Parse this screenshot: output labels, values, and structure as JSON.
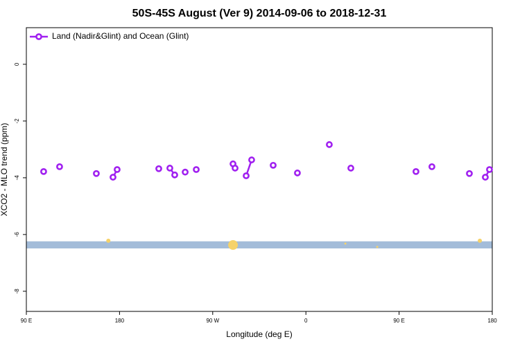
{
  "chart_data": {
    "type": "line",
    "title": "50S-45S August (Ver 9)   2014-09-06 to 2018-12-31",
    "x_label": "Longitude (deg E)",
    "y_label": "XCO2 - MLO trend (ppm)",
    "xlim": [
      90,
      540
    ],
    "xticks": [
      {
        "value": 90,
        "label": "90 E"
      },
      {
        "value": 180,
        "label": "180"
      },
      {
        "value": 270,
        "label": "90 W"
      },
      {
        "value": 360,
        "label": "0"
      },
      {
        "value": 450,
        "label": "90 E"
      },
      {
        "value": 540,
        "label": "180"
      }
    ],
    "ylim": [
      -8.71,
      1.29
    ],
    "yticks": [
      0,
      -2,
      -4,
      -6,
      -8
    ],
    "grid": false,
    "legend": "top-left",
    "x": [
      106.7,
      122.1,
      157.6,
      173.7,
      177.7,
      217.9,
      228.6,
      233.3,
      243.4,
      254.1,
      289.6,
      291.6,
      302.3,
      307.6,
      328.4,
      351.8,
      382.6,
      403.4,
      466.3,
      481.7,
      517.9,
      533.3,
      537.3
    ],
    "series": [
      {
        "name": "Land (Nadir&Glint) and Ocean (Glint)",
        "color": "#a020f0",
        "values": [
          -3.78,
          -3.61,
          -3.85,
          -3.98,
          -3.71,
          -3.68,
          -3.66,
          -3.9,
          -3.8,
          -3.71,
          -3.51,
          -3.66,
          -3.93,
          -3.37,
          -3.56,
          -3.83,
          -2.83,
          -3.66,
          -3.78,
          -3.61,
          -3.85,
          -3.98,
          -3.71
        ]
      }
    ],
    "band": {
      "range": [
        -6.49,
        -6.24
      ],
      "color": "#a3bcd9"
    },
    "highlights": {
      "color": "#f5d26a",
      "x": [
        169.2,
        289.6,
        398.1,
        428.9,
        528.0
      ],
      "values": [
        -6.22,
        -6.37,
        -6.32,
        -6.44,
        -6.22
      ],
      "sizes": [
        3,
        7,
        1.5,
        1.5,
        3
      ]
    }
  }
}
